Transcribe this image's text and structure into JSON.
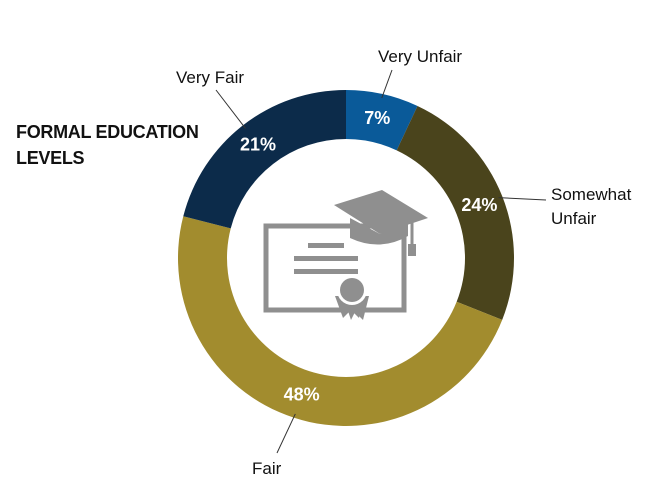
{
  "chart_data": {
    "type": "pie",
    "variant": "donut",
    "title_lines": [
      "FORMAL EDUCATION",
      "LEVELS"
    ],
    "center_icon": "diploma-graduation-cap-icon",
    "slices": [
      {
        "label": "Very Unfair",
        "label_lines": [
          "Very Unfair"
        ],
        "value": 7,
        "display": "7%",
        "color": "#0a5a99"
      },
      {
        "label": "Somewhat Unfair",
        "label_lines": [
          "Somewhat",
          "Unfair"
        ],
        "value": 24,
        "display": "24%",
        "color": "#4a441c"
      },
      {
        "label": "Fair",
        "label_lines": [
          "Fair"
        ],
        "value": 48,
        "display": "48%",
        "color": "#a28c2e"
      },
      {
        "label": "Very Fair",
        "label_lines": [
          "Very Fair"
        ],
        "value": 21,
        "display": "21%",
        "color": "#0c2b4a"
      }
    ]
  }
}
